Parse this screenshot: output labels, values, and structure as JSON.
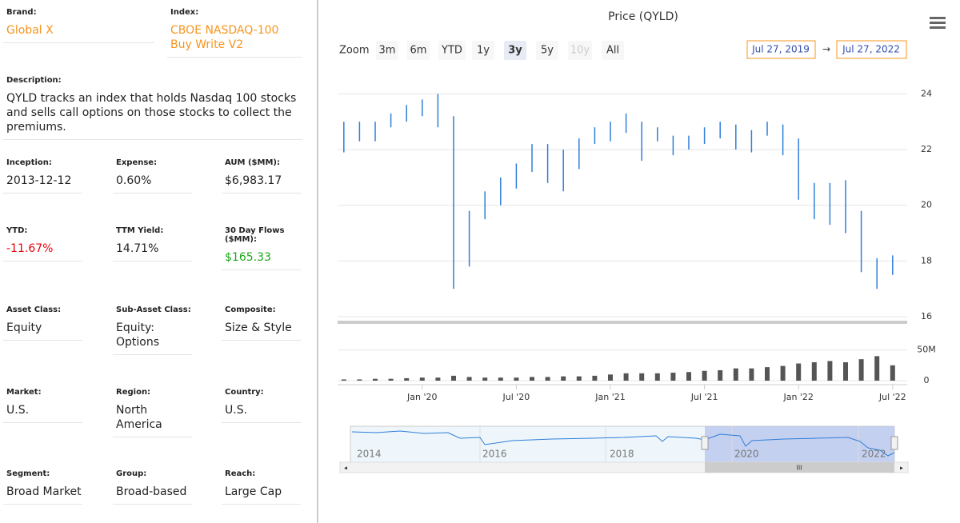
{
  "panel": {
    "rows": [
      [
        {
          "label": "Brand:",
          "value": "Global X",
          "color": "#f7941d"
        },
        {
          "label": "Index:",
          "value": "CBOE NASDAQ-100 Buy Write V2",
          "color": "#f7941d"
        }
      ],
      [
        {
          "label": "Description:",
          "value": "QYLD tracks an index that holds Nasdaq 100 stocks and sells call options on those stocks to collect the premiums."
        }
      ],
      [
        {
          "label": "Inception:",
          "value": "2013-12-12"
        },
        {
          "label": "Expense:",
          "value": "0.60%"
        },
        {
          "label": "AUM ($MM):",
          "value": "$6,983.17"
        }
      ],
      [
        {
          "label": "YTD:",
          "value": "-11.67%",
          "color": "#e8000b"
        },
        {
          "label": "TTM Yield:",
          "value": "14.71%"
        },
        {
          "label": "30 Day Flows ($MM):",
          "value": "$165.33",
          "color": "#1aa71a"
        }
      ],
      [
        {
          "label": "Asset Class:",
          "value": "Equity"
        },
        {
          "label": "Sub-Asset Class:",
          "value": "Equity: Options"
        },
        {
          "label": "Composite:",
          "value": "Size & Style"
        }
      ],
      [
        {
          "label": "Market:",
          "value": "U.S."
        },
        {
          "label": "Region:",
          "value": "North America"
        },
        {
          "label": "Country:",
          "value": "U.S."
        }
      ],
      [
        {
          "label": "Segment:",
          "value": "Broad Market"
        },
        {
          "label": "Group:",
          "value": "Broad-based"
        },
        {
          "label": "Reach:",
          "value": "Large Cap"
        }
      ]
    ]
  },
  "toolbar": {
    "zoom_label": "Zoom",
    "buttons": [
      "3m",
      "6m",
      "YTD",
      "1y",
      "3y",
      "5y",
      "10y",
      "All"
    ],
    "selected": "3y",
    "disabled": [
      "10y"
    ],
    "from": "Jul 27, 2019",
    "separator": "→",
    "to": "Jul 27, 2022"
  },
  "chart_data": {
    "type": "stock",
    "title": "Price (QYLD)",
    "color": "#2f7ed8",
    "volume_color": "#555555",
    "x": [
      "2019-08",
      "2019-09",
      "2019-10",
      "2019-11",
      "2019-12",
      "2020-01",
      "2020-02",
      "2020-03",
      "2020-04",
      "2020-05",
      "2020-06",
      "2020-07",
      "2020-08",
      "2020-09",
      "2020-10",
      "2020-11",
      "2020-12",
      "2021-01",
      "2021-02",
      "2021-03",
      "2021-04",
      "2021-05",
      "2021-06",
      "2021-07",
      "2021-08",
      "2021-09",
      "2021-10",
      "2021-11",
      "2021-12",
      "2022-01",
      "2022-02",
      "2022-03",
      "2022-04",
      "2022-05",
      "2022-06",
      "2022-07"
    ],
    "high": [
      23.0,
      23.0,
      23.0,
      23.3,
      23.6,
      23.8,
      24.0,
      23.2,
      19.8,
      20.5,
      21.0,
      21.5,
      22.2,
      22.2,
      22.0,
      22.4,
      22.8,
      23.0,
      23.3,
      23.0,
      22.8,
      22.5,
      22.5,
      22.8,
      23.0,
      22.9,
      22.7,
      23.0,
      22.9,
      22.4,
      20.8,
      20.8,
      20.9,
      19.8,
      18.1,
      18.2
    ],
    "low": [
      21.9,
      22.3,
      22.3,
      22.8,
      23.0,
      23.2,
      22.8,
      17.0,
      17.8,
      19.5,
      20.0,
      20.6,
      21.2,
      20.8,
      20.5,
      21.3,
      22.2,
      22.3,
      22.6,
      21.6,
      22.3,
      21.8,
      22.0,
      22.2,
      22.4,
      22.0,
      21.9,
      22.5,
      21.8,
      20.2,
      19.5,
      19.3,
      19.0,
      17.6,
      17.0,
      17.5
    ],
    "volume": [
      2,
      2,
      3,
      3,
      4,
      5,
      5,
      8,
      6,
      5,
      5,
      5,
      6,
      6,
      7,
      7,
      8,
      10,
      12,
      12,
      12,
      13,
      14,
      16,
      17,
      20,
      20,
      22,
      24,
      28,
      30,
      32,
      30,
      35,
      40,
      25
    ],
    "ylim": [
      16,
      24.5
    ],
    "yticks": [
      16,
      18,
      20,
      22,
      24
    ],
    "y2lim": [
      0,
      60
    ],
    "y2ticks": [
      0,
      {
        "value": 50,
        "label": "50M"
      }
    ],
    "xticks": [
      {
        "value": "2020-01",
        "label": "Jan '20"
      },
      {
        "value": "2020-07",
        "label": "Jul '20"
      },
      {
        "value": "2021-01",
        "label": "Jan '21"
      },
      {
        "value": "2021-07",
        "label": "Jul '21"
      },
      {
        "value": "2022-01",
        "label": "Jan '22"
      },
      {
        "value": "2022-07",
        "label": "Jul '22"
      }
    ],
    "grid": true,
    "navigator_years": [
      "2014",
      "2016",
      "2018",
      "2020",
      "2022"
    ]
  }
}
